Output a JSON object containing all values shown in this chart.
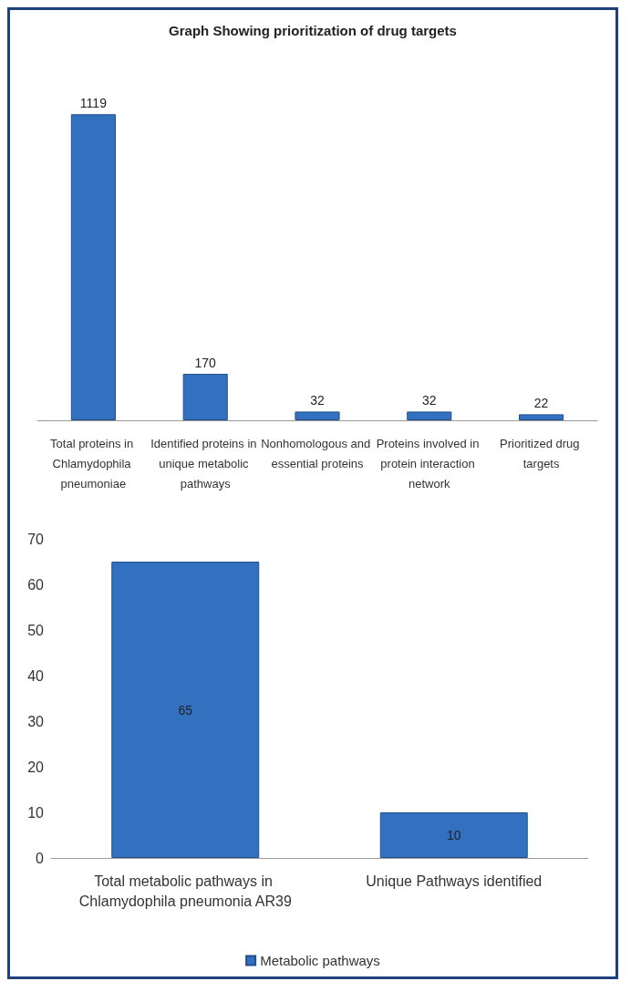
{
  "chart_data": [
    {
      "type": "bar",
      "title": "Graph Showing prioritization of drug targets",
      "categories": [
        "Total proteins in Chlamydophila pneumoniae",
        "Identified proteins in unique metabolic pathways",
        "Nonhomologous and essential proteins",
        "Proteins involved in protein interaction network",
        "Prioritized drug targets"
      ],
      "values": [
        1119,
        170,
        32,
        32,
        22
      ],
      "color": "#3470c0",
      "data_labels": true,
      "tick_labels": "x",
      "grid": false,
      "legend": false
    },
    {
      "type": "bar",
      "categories": [
        "Total metabolic pathways in Chlamydophila pneumonia AR39",
        "Unique Pathways identified"
      ],
      "series": [
        {
          "name": "Metabolic pathways",
          "color": "#3470c0",
          "values": [
            65,
            10
          ]
        }
      ],
      "ylim": [
        0,
        70
      ],
      "yticks": [
        0,
        10,
        20,
        30,
        40,
        50,
        60,
        70
      ],
      "data_labels": true,
      "grid": false,
      "legend": "bottom"
    }
  ]
}
